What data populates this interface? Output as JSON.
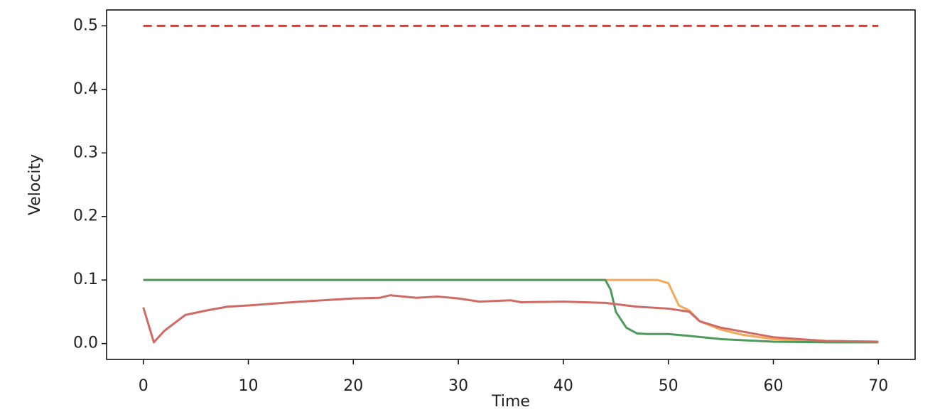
{
  "chart_data": {
    "type": "line",
    "x_label": "Time",
    "y_label": "Velocity",
    "xlim": [
      -3.5,
      73.5
    ],
    "ylim": [
      -0.025,
      0.525
    ],
    "xticks": [
      0,
      10,
      20,
      30,
      40,
      50,
      60,
      70
    ],
    "yticks": [
      {
        "value": 0,
        "label": "0.0"
      },
      0.1,
      0.2,
      0.3,
      0.4,
      0.5
    ],
    "series": [
      {
        "color": "#e8352b",
        "dashed": true,
        "x": [
          0,
          70
        ],
        "values": [
          0.5,
          0.5
        ]
      },
      {
        "color": "#f4a95a",
        "x": [
          0,
          44,
          48,
          49,
          50,
          51,
          52,
          53,
          55,
          57,
          60,
          65,
          70
        ],
        "values": [
          0.1,
          0.1,
          0.1,
          0.1,
          0.095,
          0.06,
          0.052,
          0.035,
          0.022,
          0.014,
          0.007,
          0.004,
          0.003
        ]
      },
      {
        "color": "#4e9a5c",
        "x": [
          0,
          44,
          44.5,
          45,
          46,
          47,
          48,
          50,
          52,
          55,
          60,
          65,
          70
        ],
        "values": [
          0.1,
          0.1,
          0.085,
          0.05,
          0.025,
          0.016,
          0.015,
          0.015,
          0.012,
          0.007,
          0.003,
          0.002,
          0.002
        ]
      },
      {
        "color": "#d06a64",
        "x": [
          0,
          1,
          2,
          4,
          6,
          8,
          10,
          15,
          20,
          22.5,
          23.5,
          26,
          28,
          30,
          32,
          35,
          36,
          40,
          44,
          47,
          50,
          52,
          53,
          55,
          60,
          65,
          70
        ],
        "values": [
          0.057,
          0.002,
          0.02,
          0.045,
          0.052,
          0.058,
          0.06,
          0.066,
          0.071,
          0.072,
          0.076,
          0.072,
          0.074,
          0.071,
          0.066,
          0.068,
          0.065,
          0.066,
          0.064,
          0.058,
          0.055,
          0.05,
          0.035,
          0.025,
          0.01,
          0.004,
          0.003
        ]
      }
    ]
  }
}
